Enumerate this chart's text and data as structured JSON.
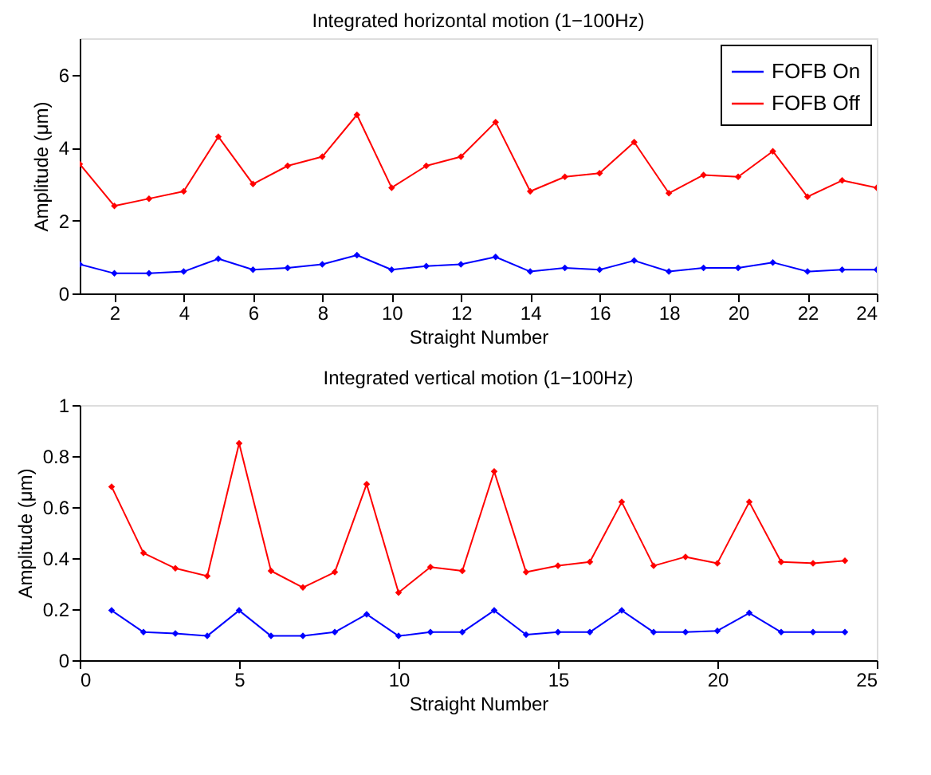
{
  "chart_data": [
    {
      "type": "line",
      "title": "Integrated horizontal motion (1−100Hz)",
      "xlabel": "Straight Number",
      "ylabel": "Amplitude (μm)",
      "x": [
        1,
        2,
        3,
        4,
        5,
        6,
        7,
        8,
        9,
        10,
        11,
        12,
        13,
        14,
        15,
        16,
        17,
        18,
        19,
        20,
        21,
        22,
        23,
        24
      ],
      "series": [
        {
          "name": "FOFB On",
          "color": "#0000ff",
          "values": [
            0.8,
            0.55,
            0.55,
            0.6,
            0.95,
            0.65,
            0.7,
            0.8,
            1.05,
            0.65,
            0.75,
            0.8,
            1.0,
            0.6,
            0.7,
            0.65,
            0.9,
            0.6,
            0.7,
            0.7,
            0.85,
            0.6,
            0.65,
            0.65
          ]
        },
        {
          "name": "FOFB Off",
          "color": "#ff0000",
          "values": [
            3.55,
            2.4,
            2.6,
            2.8,
            4.3,
            3.0,
            3.5,
            3.75,
            4.9,
            2.9,
            3.5,
            3.75,
            4.7,
            2.8,
            3.2,
            3.3,
            4.15,
            2.75,
            3.25,
            3.2,
            3.9,
            2.65,
            3.1,
            2.9
          ]
        }
      ],
      "xlim": [
        1,
        24
      ],
      "xticks": [
        2,
        4,
        6,
        8,
        10,
        12,
        14,
        16,
        18,
        20,
        22,
        24
      ],
      "ylim": [
        0,
        7
      ],
      "yticks": [
        0,
        2,
        4,
        6
      ],
      "grid": false,
      "legend": "top right",
      "marker": "diamond",
      "line_style": "solid"
    },
    {
      "type": "line",
      "title": "Integrated vertical motion (1−100Hz)",
      "xlabel": "Straight Number",
      "ylabel": "Amplitude (μm)",
      "x": [
        1,
        2,
        3,
        4,
        5,
        6,
        7,
        8,
        9,
        10,
        11,
        12,
        13,
        14,
        15,
        16,
        17,
        18,
        19,
        20,
        21,
        22,
        23,
        24
      ],
      "series": [
        {
          "name": "FOFB On",
          "color": "#0000ff",
          "values": [
            0.195,
            0.11,
            0.105,
            0.095,
            0.195,
            0.095,
            0.095,
            0.11,
            0.18,
            0.095,
            0.11,
            0.11,
            0.195,
            0.1,
            0.11,
            0.11,
            0.195,
            0.11,
            0.11,
            0.115,
            0.185,
            0.11,
            0.11,
            0.11
          ]
        },
        {
          "name": "FOFB Off",
          "color": "#ff0000",
          "values": [
            0.68,
            0.42,
            0.36,
            0.33,
            0.85,
            0.35,
            0.285,
            0.345,
            0.69,
            0.265,
            0.365,
            0.35,
            0.74,
            0.345,
            0.37,
            0.385,
            0.62,
            0.37,
            0.405,
            0.38,
            0.62,
            0.385,
            0.38,
            0.39
          ]
        }
      ],
      "xlim": [
        0,
        25
      ],
      "xticks": [
        0,
        5,
        10,
        15,
        20,
        25
      ],
      "ylim": [
        0,
        1
      ],
      "yticks": [
        0,
        0.2,
        0.4,
        0.6,
        0.8,
        1
      ],
      "grid": false,
      "legend": "top right",
      "marker": "diamond",
      "line_style": "solid"
    }
  ]
}
